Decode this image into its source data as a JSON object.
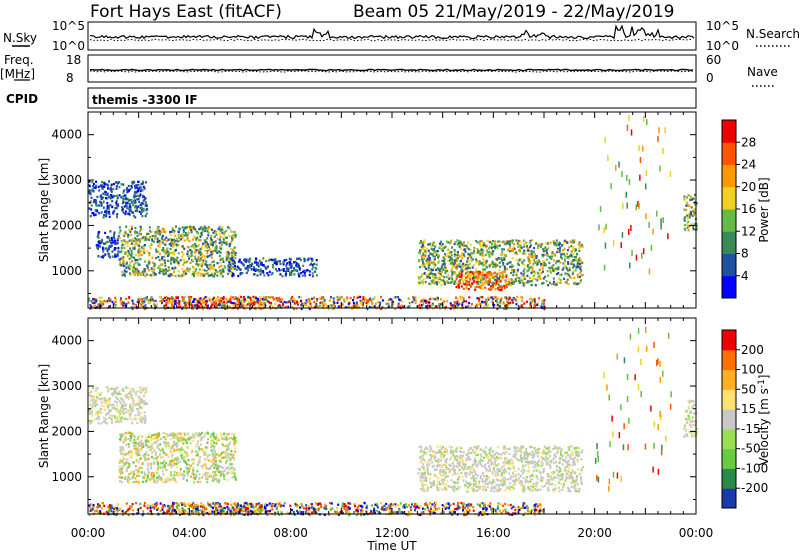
{
  "header": {
    "title": "Fort Hays East (fitACF)",
    "beam_info": "Beam 05 21/May/2019 - 22/May/2019"
  },
  "aux_panels": {
    "nsky_label": "N.Sky",
    "nsky_ticks": [
      "10^5",
      "10^0"
    ],
    "nsearch_label": "N.Search",
    "nsearch_ticks": [
      "10^5",
      "10^0"
    ],
    "freq_label": "Freq.",
    "freq_unit": "[MHz]",
    "freq_ticks": [
      "18",
      "8"
    ],
    "nave_label": "Nave",
    "nave_ticks": [
      "60",
      "0"
    ],
    "cpid_label": "CPID",
    "cpid_value": "themis -3300 IF"
  },
  "chart_data": [
    {
      "type": "heatmap",
      "name": "power",
      "ylabel": "Slant Range [km]",
      "ylim": [
        180,
        4500
      ],
      "yticks": [
        "1000",
        "2000",
        "3000",
        "4000"
      ],
      "xlabel": "",
      "colorbar": {
        "label": "Power [dB]",
        "ticks": [
          "4",
          "8",
          "12",
          "16",
          "20",
          "24",
          "28"
        ],
        "colors": [
          "#0000ff",
          "#2050a0",
          "#3a8a55",
          "#66bb44",
          "#f0d020",
          "#ff9900",
          "#ff5500",
          "#ee0000"
        ]
      },
      "regions": [
        {
          "t": [
            0.0,
            2.3
          ],
          "r": [
            2200,
            3000
          ],
          "level": "low"
        },
        {
          "t": [
            0.3,
            1.2
          ],
          "r": [
            1300,
            1900
          ],
          "level": "low"
        },
        {
          "t": [
            1.2,
            5.8
          ],
          "r": [
            900,
            2000
          ],
          "level": "mid"
        },
        {
          "t": [
            5.5,
            9.0
          ],
          "r": [
            900,
            1300
          ],
          "level": "low"
        },
        {
          "t": [
            13.0,
            19.5
          ],
          "r": [
            700,
            1700
          ],
          "level": "mid"
        },
        {
          "t": [
            14.5,
            16.5
          ],
          "r": [
            600,
            1000
          ],
          "level": "high"
        },
        {
          "t": [
            3.0,
            7.0
          ],
          "r": [
            200,
            450
          ],
          "level": "high"
        },
        {
          "t": [
            0.0,
            18.0
          ],
          "r": [
            180,
            450
          ],
          "level": "mixed"
        },
        {
          "t": [
            23.5,
            24.0
          ],
          "r": [
            1900,
            2700
          ],
          "level": "mid"
        },
        {
          "t": [
            20.0,
            23.0
          ],
          "r": [
            800,
            4500
          ],
          "level": "sparse"
        }
      ]
    },
    {
      "type": "heatmap",
      "name": "velocity",
      "ylabel": "Slant Range [km]",
      "ylim": [
        180,
        4500
      ],
      "yticks": [
        "1000",
        "2000",
        "3000",
        "4000"
      ],
      "xlabel": "Time UT",
      "xticks": [
        "00:00",
        "04:00",
        "08:00",
        "12:00",
        "16:00",
        "20:00",
        "00:00"
      ],
      "xlim": [
        0,
        24
      ],
      "colorbar": {
        "label": "Velocity [m s",
        "label_sup": "-1",
        "label_end": "]",
        "ticks": [
          "200",
          "100",
          "50",
          "15",
          "-15",
          "-50",
          "-100",
          "-200"
        ],
        "colors": [
          "#1a3aaa",
          "#2a8a4a",
          "#66cc44",
          "#99dd55",
          "#c8c8c8",
          "#ffe070",
          "#ffb020",
          "#ff7000",
          "#ee0000"
        ]
      },
      "regions": [
        {
          "t": [
            0.0,
            2.3
          ],
          "r": [
            2200,
            3000
          ],
          "level": "gray"
        },
        {
          "t": [
            1.2,
            5.8
          ],
          "r": [
            900,
            2000
          ],
          "level": "gray-mixed"
        },
        {
          "t": [
            13.0,
            19.5
          ],
          "r": [
            700,
            1700
          ],
          "level": "gray"
        },
        {
          "t": [
            3.0,
            7.0
          ],
          "r": [
            200,
            450
          ],
          "level": "orange-green"
        },
        {
          "t": [
            0.0,
            18.0
          ],
          "r": [
            180,
            450
          ],
          "level": "mixed"
        },
        {
          "t": [
            23.5,
            24.0
          ],
          "r": [
            1900,
            2700
          ],
          "level": "gray"
        },
        {
          "t": [
            20.0,
            23.0
          ],
          "r": [
            800,
            4500
          ],
          "level": "sparse"
        }
      ]
    }
  ]
}
